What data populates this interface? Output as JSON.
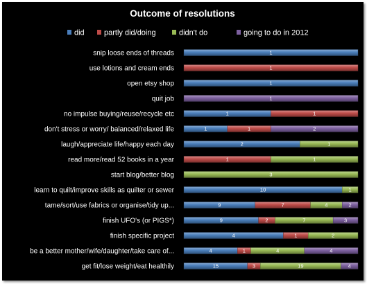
{
  "chart_data": {
    "type": "bar",
    "orientation": "horizontal",
    "stacking": "percent",
    "title": "Outcome of resolutions",
    "legend_position": "top",
    "grid": false,
    "categories": [
      "snip loose ends of threads",
      "use lotions and cream ends",
      "open etsy shop",
      "quit job",
      "no impulse buying/reuse/recycle etc",
      "don't stress or worry/ balanced/relaxed life",
      "laugh/appreciate life/happy each day",
      "read more/read 52 books in a year",
      "start blog/better blog",
      "learn to quilt/improve skills as quilter or sewer",
      "tame/sort/use fabrics or organise/tidy up...",
      "finish UFO's (or PIGS*)",
      "finish specific project",
      "be a better mother/wife/daughter/take care of...",
      "get fit/lose weight/eat healthily"
    ],
    "series": [
      {
        "name": "did",
        "color": "#4a7ebb",
        "values": [
          1,
          0,
          1,
          0,
          1,
          1,
          2,
          0,
          0,
          10,
          9,
          9,
          4,
          4,
          15
        ]
      },
      {
        "name": "partly did/doing",
        "color": "#be4b48",
        "values": [
          0,
          1,
          0,
          0,
          1,
          1,
          0,
          1,
          0,
          0,
          7,
          2,
          1,
          1,
          3
        ]
      },
      {
        "name": "didn't do",
        "color": "#98b954",
        "values": [
          0,
          0,
          0,
          0,
          0,
          0,
          1,
          1,
          3,
          1,
          4,
          7,
          2,
          4,
          19
        ]
      },
      {
        "name": "going to do in 2012",
        "color": "#7d60a0",
        "values": [
          0,
          0,
          0,
          1,
          0,
          2,
          0,
          0,
          0,
          0,
          2,
          3,
          0,
          4,
          4
        ]
      }
    ]
  }
}
